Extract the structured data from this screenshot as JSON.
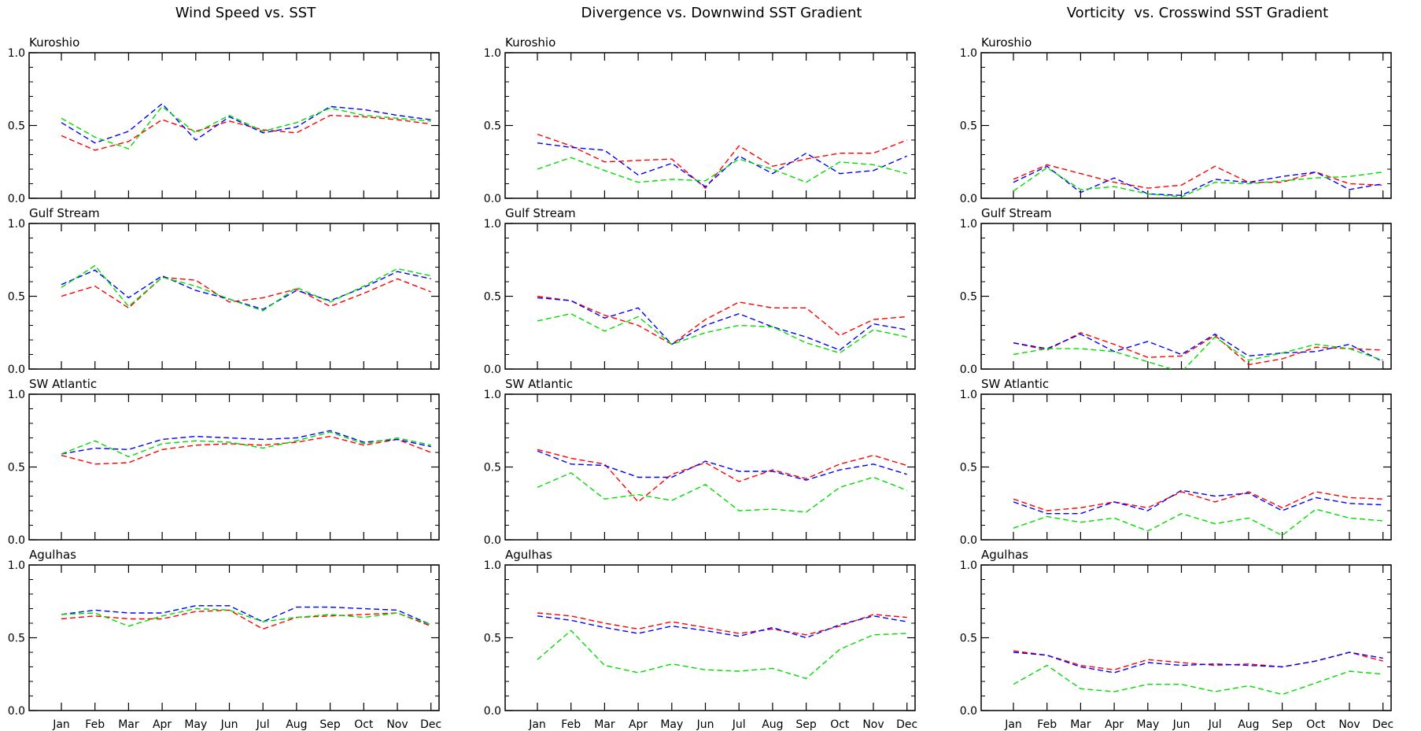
{
  "figure": {
    "column_titles": [
      "Wind Speed vs. SST",
      "Divergence vs. Downwind SST Gradient",
      "Vorticity  vs. Crosswind SST Gradient"
    ],
    "row_labels": [
      "Kuroshio",
      "Gulf Stream",
      "SW Atlantic",
      "Agulhas"
    ],
    "months": [
      "Jan",
      "Feb",
      "Mar",
      "Apr",
      "May",
      "Jun",
      "Jul",
      "Aug",
      "Sep",
      "Oct",
      "Nov",
      "Dec"
    ],
    "ytick_labels": [
      "0.0",
      "0.5",
      "1.0"
    ]
  },
  "chart_data": [
    {
      "type": "line",
      "column": 0,
      "row": 0,
      "title": "Kuroshio",
      "ylim": [
        0,
        1
      ],
      "yticks": [
        0,
        0.5,
        1.0
      ],
      "x": [
        "Jan",
        "Feb",
        "Mar",
        "Apr",
        "May",
        "Jun",
        "Jul",
        "Aug",
        "Sep",
        "Oct",
        "Nov",
        "Dec"
      ],
      "series": [
        {
          "color": "#ff0000",
          "values": [
            0.43,
            0.33,
            0.39,
            0.54,
            0.46,
            0.53,
            0.47,
            0.45,
            0.57,
            0.56,
            0.54,
            0.51
          ]
        },
        {
          "color": "#0000ff",
          "values": [
            0.52,
            0.38,
            0.46,
            0.65,
            0.4,
            0.56,
            0.45,
            0.49,
            0.63,
            0.61,
            0.57,
            0.54
          ]
        },
        {
          "color": "#00dd00",
          "values": [
            0.55,
            0.42,
            0.34,
            0.63,
            0.45,
            0.57,
            0.46,
            0.52,
            0.62,
            0.57,
            0.55,
            0.53
          ]
        }
      ]
    },
    {
      "type": "line",
      "column": 0,
      "row": 1,
      "title": "Gulf Stream",
      "ylim": [
        0,
        1
      ],
      "yticks": [
        0,
        0.5,
        1.0
      ],
      "x": [
        "Jan",
        "Feb",
        "Mar",
        "Apr",
        "May",
        "Jun",
        "Jul",
        "Aug",
        "Sep",
        "Oct",
        "Nov",
        "Dec"
      ],
      "series": [
        {
          "color": "#ff0000",
          "values": [
            0.5,
            0.57,
            0.42,
            0.63,
            0.61,
            0.46,
            0.49,
            0.55,
            0.43,
            0.52,
            0.62,
            0.53
          ]
        },
        {
          "color": "#0000ff",
          "values": [
            0.58,
            0.68,
            0.49,
            0.64,
            0.54,
            0.48,
            0.41,
            0.54,
            0.47,
            0.56,
            0.67,
            0.62
          ]
        },
        {
          "color": "#00dd00",
          "values": [
            0.56,
            0.71,
            0.43,
            0.63,
            0.57,
            0.48,
            0.4,
            0.56,
            0.46,
            0.57,
            0.69,
            0.64
          ]
        }
      ]
    },
    {
      "type": "line",
      "column": 0,
      "row": 2,
      "title": "SW Atlantic",
      "ylim": [
        0,
        1
      ],
      "yticks": [
        0,
        0.5,
        1.0
      ],
      "x": [
        "Jan",
        "Feb",
        "Mar",
        "Apr",
        "May",
        "Jun",
        "Jul",
        "Aug",
        "Sep",
        "Oct",
        "Nov",
        "Dec"
      ],
      "series": [
        {
          "color": "#ff0000",
          "values": [
            0.58,
            0.52,
            0.53,
            0.62,
            0.65,
            0.66,
            0.65,
            0.67,
            0.71,
            0.65,
            0.69,
            0.6
          ]
        },
        {
          "color": "#0000ff",
          "values": [
            0.59,
            0.63,
            0.62,
            0.69,
            0.71,
            0.7,
            0.69,
            0.7,
            0.75,
            0.67,
            0.69,
            0.64
          ]
        },
        {
          "color": "#00dd00",
          "values": [
            0.59,
            0.68,
            0.57,
            0.66,
            0.68,
            0.67,
            0.63,
            0.68,
            0.74,
            0.66,
            0.7,
            0.65
          ]
        }
      ]
    },
    {
      "type": "line",
      "column": 0,
      "row": 3,
      "title": "Agulhas",
      "ylim": [
        0,
        1
      ],
      "yticks": [
        0,
        0.5,
        1.0
      ],
      "x": [
        "Jan",
        "Feb",
        "Mar",
        "Apr",
        "May",
        "Jun",
        "Jul",
        "Aug",
        "Sep",
        "Oct",
        "Nov",
        "Dec"
      ],
      "series": [
        {
          "color": "#ff0000",
          "values": [
            0.63,
            0.65,
            0.63,
            0.63,
            0.68,
            0.69,
            0.56,
            0.64,
            0.65,
            0.66,
            0.67,
            0.58
          ]
        },
        {
          "color": "#0000ff",
          "values": [
            0.66,
            0.69,
            0.67,
            0.67,
            0.72,
            0.72,
            0.61,
            0.71,
            0.71,
            0.7,
            0.69,
            0.59
          ]
        },
        {
          "color": "#00dd00",
          "values": [
            0.66,
            0.67,
            0.58,
            0.65,
            0.7,
            0.69,
            0.61,
            0.64,
            0.66,
            0.64,
            0.67,
            0.59
          ]
        }
      ]
    },
    {
      "type": "line",
      "column": 1,
      "row": 0,
      "title": "Kuroshio",
      "ylim": [
        0,
        1
      ],
      "yticks": [
        0,
        0.5,
        1.0
      ],
      "x": [
        "Jan",
        "Feb",
        "Mar",
        "Apr",
        "May",
        "Jun",
        "Jul",
        "Aug",
        "Sep",
        "Oct",
        "Nov",
        "Dec"
      ],
      "series": [
        {
          "color": "#ff0000",
          "values": [
            0.44,
            0.36,
            0.25,
            0.26,
            0.27,
            0.07,
            0.36,
            0.22,
            0.27,
            0.31,
            0.31,
            0.4
          ]
        },
        {
          "color": "#0000ff",
          "values": [
            0.38,
            0.35,
            0.33,
            0.16,
            0.24,
            0.08,
            0.29,
            0.17,
            0.31,
            0.17,
            0.19,
            0.29
          ]
        },
        {
          "color": "#00dd00",
          "values": [
            0.2,
            0.28,
            0.19,
            0.11,
            0.13,
            0.12,
            0.27,
            0.2,
            0.11,
            0.25,
            0.23,
            0.17
          ]
        }
      ]
    },
    {
      "type": "line",
      "column": 1,
      "row": 1,
      "title": "Gulf Stream",
      "ylim": [
        0,
        1
      ],
      "yticks": [
        0,
        0.5,
        1.0
      ],
      "x": [
        "Jan",
        "Feb",
        "Mar",
        "Apr",
        "May",
        "Jun",
        "Jul",
        "Aug",
        "Sep",
        "Oct",
        "Nov",
        "Dec"
      ],
      "series": [
        {
          "color": "#ff0000",
          "values": [
            0.5,
            0.47,
            0.37,
            0.3,
            0.17,
            0.34,
            0.46,
            0.42,
            0.42,
            0.23,
            0.34,
            0.36
          ]
        },
        {
          "color": "#0000ff",
          "values": [
            0.49,
            0.47,
            0.35,
            0.42,
            0.17,
            0.3,
            0.38,
            0.29,
            0.22,
            0.13,
            0.31,
            0.27
          ]
        },
        {
          "color": "#00dd00",
          "values": [
            0.33,
            0.38,
            0.26,
            0.36,
            0.17,
            0.25,
            0.3,
            0.29,
            0.18,
            0.11,
            0.27,
            0.22
          ]
        }
      ]
    },
    {
      "type": "line",
      "column": 1,
      "row": 2,
      "title": "SW Atlantic",
      "ylim": [
        0,
        1
      ],
      "yticks": [
        0,
        0.5,
        1.0
      ],
      "x": [
        "Jan",
        "Feb",
        "Mar",
        "Apr",
        "May",
        "Jun",
        "Jul",
        "Aug",
        "Sep",
        "Oct",
        "Nov",
        "Dec"
      ],
      "series": [
        {
          "color": "#ff0000",
          "values": [
            0.62,
            0.56,
            0.52,
            0.26,
            0.45,
            0.53,
            0.4,
            0.48,
            0.42,
            0.52,
            0.58,
            0.51
          ]
        },
        {
          "color": "#0000ff",
          "values": [
            0.61,
            0.52,
            0.51,
            0.43,
            0.43,
            0.54,
            0.47,
            0.47,
            0.41,
            0.48,
            0.52,
            0.45
          ]
        },
        {
          "color": "#00dd00",
          "values": [
            0.36,
            0.46,
            0.28,
            0.31,
            0.27,
            0.38,
            0.2,
            0.21,
            0.19,
            0.36,
            0.43,
            0.34
          ]
        }
      ]
    },
    {
      "type": "line",
      "column": 1,
      "row": 3,
      "title": "Agulhas",
      "ylim": [
        0,
        1
      ],
      "yticks": [
        0,
        0.5,
        1.0
      ],
      "x": [
        "Jan",
        "Feb",
        "Mar",
        "Apr",
        "May",
        "Jun",
        "Jul",
        "Aug",
        "Sep",
        "Oct",
        "Nov",
        "Dec"
      ],
      "series": [
        {
          "color": "#ff0000",
          "values": [
            0.67,
            0.65,
            0.6,
            0.56,
            0.61,
            0.57,
            0.53,
            0.56,
            0.52,
            0.58,
            0.66,
            0.64
          ]
        },
        {
          "color": "#0000ff",
          "values": [
            0.65,
            0.62,
            0.57,
            0.53,
            0.58,
            0.55,
            0.51,
            0.57,
            0.5,
            0.59,
            0.65,
            0.61
          ]
        },
        {
          "color": "#00dd00",
          "values": [
            0.35,
            0.55,
            0.31,
            0.26,
            0.32,
            0.28,
            0.27,
            0.29,
            0.22,
            0.42,
            0.52,
            0.53
          ]
        }
      ]
    },
    {
      "type": "line",
      "column": 2,
      "row": 0,
      "title": "Kuroshio",
      "ylim": [
        0,
        1
      ],
      "yticks": [
        0,
        0.5,
        1.0
      ],
      "x": [
        "Jan",
        "Feb",
        "Mar",
        "Apr",
        "May",
        "Jun",
        "Jul",
        "Aug",
        "Sep",
        "Oct",
        "Nov",
        "Dec"
      ],
      "series": [
        {
          "color": "#ff0000",
          "values": [
            0.13,
            0.23,
            0.17,
            0.11,
            0.07,
            0.09,
            0.22,
            0.11,
            0.11,
            0.18,
            0.1,
            0.09
          ]
        },
        {
          "color": "#0000ff",
          "values": [
            0.11,
            0.22,
            0.04,
            0.14,
            0.03,
            0.02,
            0.13,
            0.11,
            0.15,
            0.18,
            0.06,
            0.1
          ]
        },
        {
          "color": "#00dd00",
          "values": [
            0.05,
            0.21,
            0.06,
            0.08,
            0.03,
            0.01,
            0.11,
            0.1,
            0.12,
            0.14,
            0.15,
            0.18
          ]
        }
      ]
    },
    {
      "type": "line",
      "column": 2,
      "row": 1,
      "title": "Gulf Stream",
      "ylim": [
        0,
        1
      ],
      "yticks": [
        0,
        0.5,
        1.0
      ],
      "x": [
        "Jan",
        "Feb",
        "Mar",
        "Apr",
        "May",
        "Jun",
        "Jul",
        "Aug",
        "Sep",
        "Oct",
        "Nov",
        "Dec"
      ],
      "series": [
        {
          "color": "#ff0000",
          "values": [
            0.18,
            0.13,
            0.25,
            0.17,
            0.08,
            0.09,
            0.23,
            0.03,
            0.07,
            0.15,
            0.14,
            0.13
          ]
        },
        {
          "color": "#0000ff",
          "values": [
            0.18,
            0.14,
            0.24,
            0.12,
            0.19,
            0.1,
            0.24,
            0.09,
            0.11,
            0.12,
            0.17,
            0.05
          ]
        },
        {
          "color": "#00dd00",
          "values": [
            0.1,
            0.14,
            0.14,
            0.12,
            0.05,
            -0.02,
            0.22,
            0.06,
            0.11,
            0.17,
            0.14,
            0.06
          ]
        }
      ]
    },
    {
      "type": "line",
      "column": 2,
      "row": 2,
      "title": "SW Atlantic",
      "ylim": [
        0,
        1
      ],
      "yticks": [
        0,
        0.5,
        1.0
      ],
      "x": [
        "Jan",
        "Feb",
        "Mar",
        "Apr",
        "May",
        "Jun",
        "Jul",
        "Aug",
        "Sep",
        "Oct",
        "Nov",
        "Dec"
      ],
      "series": [
        {
          "color": "#ff0000",
          "values": [
            0.28,
            0.2,
            0.22,
            0.26,
            0.22,
            0.33,
            0.26,
            0.33,
            0.22,
            0.33,
            0.29,
            0.28
          ]
        },
        {
          "color": "#0000ff",
          "values": [
            0.26,
            0.18,
            0.18,
            0.26,
            0.2,
            0.34,
            0.3,
            0.32,
            0.2,
            0.29,
            0.25,
            0.24
          ]
        },
        {
          "color": "#00dd00",
          "values": [
            0.08,
            0.16,
            0.12,
            0.15,
            0.06,
            0.18,
            0.11,
            0.15,
            0.03,
            0.21,
            0.15,
            0.13
          ]
        }
      ]
    },
    {
      "type": "line",
      "column": 2,
      "row": 3,
      "title": "Agulhas",
      "ylim": [
        0,
        1
      ],
      "yticks": [
        0,
        0.5,
        1.0
      ],
      "x": [
        "Jan",
        "Feb",
        "Mar",
        "Apr",
        "May",
        "Jun",
        "Jul",
        "Aug",
        "Sep",
        "Oct",
        "Nov",
        "Dec"
      ],
      "series": [
        {
          "color": "#ff0000",
          "values": [
            0.41,
            0.38,
            0.31,
            0.28,
            0.35,
            0.33,
            0.31,
            0.32,
            0.3,
            0.34,
            0.4,
            0.34
          ]
        },
        {
          "color": "#0000ff",
          "values": [
            0.4,
            0.38,
            0.3,
            0.26,
            0.33,
            0.31,
            0.32,
            0.31,
            0.3,
            0.34,
            0.4,
            0.36
          ]
        },
        {
          "color": "#00dd00",
          "values": [
            0.18,
            0.31,
            0.15,
            0.13,
            0.18,
            0.18,
            0.13,
            0.17,
            0.11,
            0.19,
            0.27,
            0.25
          ]
        }
      ]
    }
  ]
}
